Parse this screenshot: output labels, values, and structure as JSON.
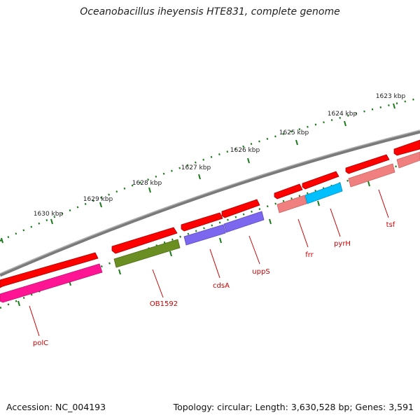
{
  "title": "Oceanobacillus iheyensis HTE831, complete genome",
  "accession": "Accession: NC_004193",
  "summary": "Topology: circular; Length: 3,630,528 bp; Genes: 3,591",
  "colors": {
    "backbone": "#7f7f7f",
    "ticks": "#1a7a1a",
    "label": "#cc0000",
    "forward_gene": "#ff0000"
  },
  "ruler_labels": [
    "1623 kbp",
    "1624 kbp",
    "1625 kbp",
    "1626 kbp",
    "1627 kbp",
    "1628 kbp",
    "1629 kbp",
    "1630 kbp"
  ],
  "genes": [
    {
      "name": "polC",
      "color": "#ff1493"
    },
    {
      "name": "OB1592",
      "color": "#6b8e23"
    },
    {
      "name": "cdsA",
      "color": "#7b68ee"
    },
    {
      "name": "uppS",
      "color": "#7b68ee"
    },
    {
      "name": "frr",
      "color": "#f08080"
    },
    {
      "name": "pyrH",
      "color": "#00bfff"
    },
    {
      "name": "tsf",
      "color": "#f08080"
    }
  ]
}
